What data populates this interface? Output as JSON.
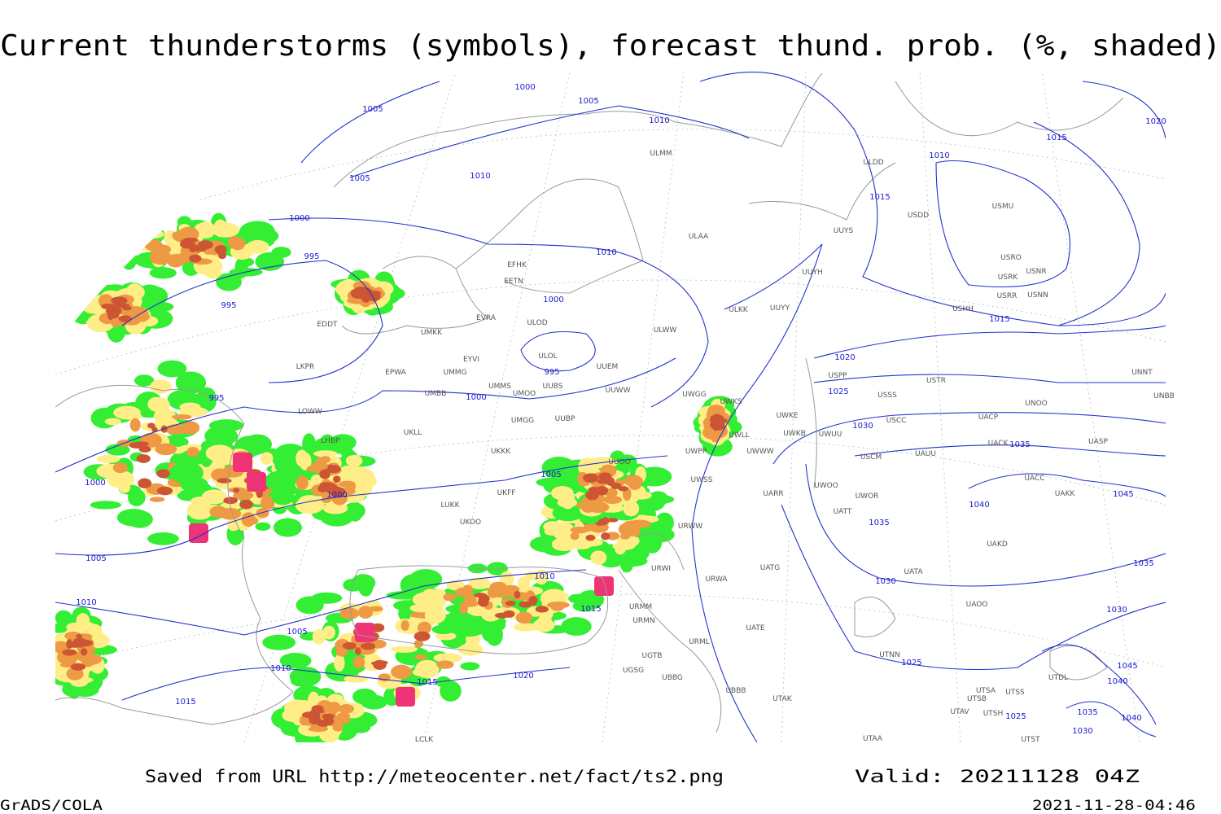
{
  "title": "Current thunderstorms (symbols), forecast thund. prob. (%, shaded)",
  "footer": {
    "saved": "Saved from URL http://meteocenter.net/fact/ts2.png",
    "valid": "Valid: 20211128 04Z",
    "software": "GrADS/COLA",
    "timestamp": "2021-11-28-04:46"
  },
  "isobar_labels": [
    "1000",
    "1005",
    "1005",
    "1010",
    "1005",
    "1010",
    "1000",
    "995",
    "995",
    "1010",
    "1000",
    "995",
    "1000",
    "995",
    "1000",
    "1000",
    "1005",
    "1005",
    "1010",
    "1010",
    "1015",
    "1005",
    "1010",
    "1015",
    "1020",
    "1015",
    "1015",
    "1010",
    "1015",
    "1020",
    "1015",
    "1020",
    "1025",
    "1030",
    "1035",
    "1040",
    "1045",
    "1035",
    "1035",
    "1030",
    "1030",
    "1025",
    "1025",
    "1045",
    "1040",
    "1035",
    "1040",
    "1030"
  ],
  "stations": [
    "ULMM",
    "ULDD",
    "USMU",
    "USDD",
    "UUYS",
    "ULAA",
    "USRO",
    "USRK",
    "USNR",
    "USRR",
    "USNN",
    "UUYH",
    "EFHK",
    "EETN",
    "USHH",
    "ULKK",
    "UUYY",
    "EVRA",
    "ULOD",
    "EDDT",
    "UMKK",
    "ULWW",
    "ULOL",
    "EYVI",
    "UUEM",
    "LKPR",
    "EPWA",
    "UMMG",
    "USPP",
    "USTR",
    "UNNT",
    "UMMS",
    "UUBS",
    "UUWW",
    "UMBB",
    "UMOO",
    "UWGG",
    "UWKS",
    "USSS",
    "UNOO",
    "UNBB",
    "LOWW",
    "UMGG",
    "UUBP",
    "UWKE",
    "USCC",
    "UACP",
    "LHBP",
    "UKLL",
    "UWKB",
    "UWLL",
    "UWUU",
    "UACK",
    "UASP",
    "UKKK",
    "UWPP",
    "UWWW",
    "USCM",
    "UAUU",
    "UUOO",
    "UWSS",
    "UACC",
    "UWOO",
    "UWOR",
    "UAKK",
    "UARR",
    "UKFF",
    "LUKK",
    "UKOO",
    "UATT",
    "URWW",
    "UAKD",
    "URWI",
    "UATG",
    "URWA",
    "UATA",
    "UAOO",
    "URMM",
    "URMN",
    "UATE",
    "URML",
    "UTNN",
    "UGTB",
    "UGSG",
    "UBBG",
    "UTDL",
    "UBBB",
    "UTAK",
    "UTSA",
    "UTSS",
    "UTSB",
    "UTAV",
    "UTSH",
    "LCLK",
    "UTAA",
    "UTST"
  ]
}
